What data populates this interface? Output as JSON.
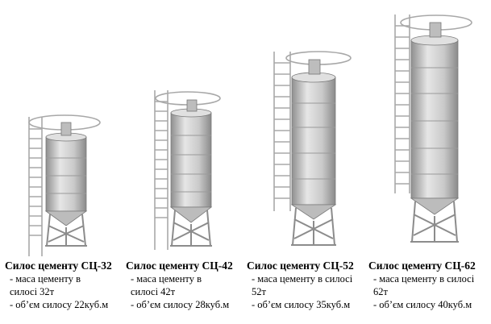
{
  "silos": [
    {
      "title": "Силос цементу СЦ-32",
      "mass_line1": "- маса цементу в",
      "mass_line2": "силосі 32т",
      "volume": "- об’єм силосу 22куб.м"
    },
    {
      "title": "Силос цементу СЦ-42",
      "mass_line1": "- маса цементу в",
      "mass_line2": "силосі 42т",
      "volume": "- об’єм силосу 28куб.м"
    },
    {
      "title": "Силос цементу СЦ-52",
      "mass_line1": "- маса цементу в силосі",
      "mass_line2": "52т",
      "volume": "- об’єм силосу 35куб.м"
    },
    {
      "title": "Силос цементу СЦ-62",
      "mass_line1": "- маса цементу в силосі",
      "mass_line2": "62т",
      "volume": "- об’єм силосу 40куб.м"
    }
  ],
  "colors": {
    "body": "#d4d4d4",
    "shade": "#9a9a9a",
    "frame": "#8c8c8c",
    "ladder": "#a8a8a8"
  }
}
